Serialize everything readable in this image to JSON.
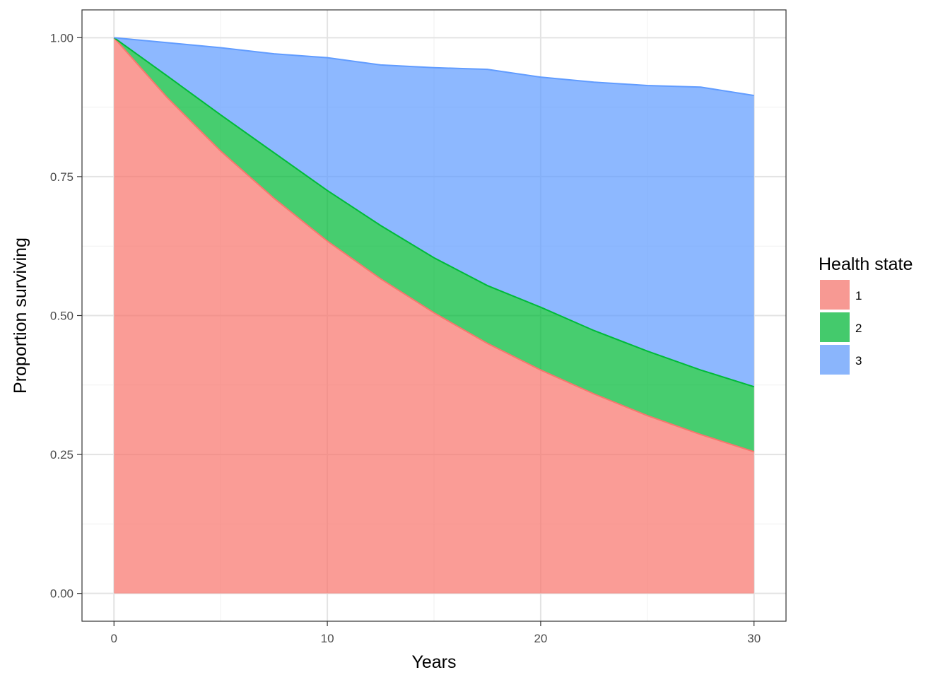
{
  "chart_data": {
    "type": "area",
    "stacked": true,
    "xlabel": "Years",
    "ylabel": "Proportion surviving",
    "xlim": [
      -1.5,
      31.5
    ],
    "ylim": [
      -0.05,
      1.05
    ],
    "x_ticks": [
      0,
      10,
      20,
      30
    ],
    "x_tick_labels": [
      "0",
      "10",
      "20",
      "30"
    ],
    "y_ticks": [
      0,
      0.25,
      0.5,
      0.75,
      1
    ],
    "y_tick_labels": [
      "0.00",
      "0.25",
      "0.50",
      "0.75",
      "1.00"
    ],
    "grid": true,
    "legend": {
      "title": "Health state",
      "placement": "right"
    },
    "x": [
      0,
      2.5,
      5,
      7.5,
      10,
      12.5,
      15,
      17.5,
      20,
      22.5,
      25,
      27.5,
      30
    ],
    "series": [
      {
        "name": "1",
        "color": "#F8766D",
        "values": [
          1.0,
          0.892,
          0.796,
          0.711,
          0.634,
          0.566,
          0.505,
          0.45,
          0.402,
          0.359,
          0.32,
          0.286,
          0.255
        ]
      },
      {
        "name": "2",
        "color": "#00BA38",
        "values": [
          0.0,
          0.039,
          0.065,
          0.082,
          0.091,
          0.096,
          0.099,
          0.104,
          0.113,
          0.114,
          0.116,
          0.116,
          0.117
        ]
      },
      {
        "name": "3",
        "color": "#619CFF",
        "values": [
          0.0,
          0.06,
          0.121,
          0.178,
          0.239,
          0.289,
          0.342,
          0.389,
          0.414,
          0.447,
          0.478,
          0.509,
          0.524
        ]
      }
    ]
  }
}
